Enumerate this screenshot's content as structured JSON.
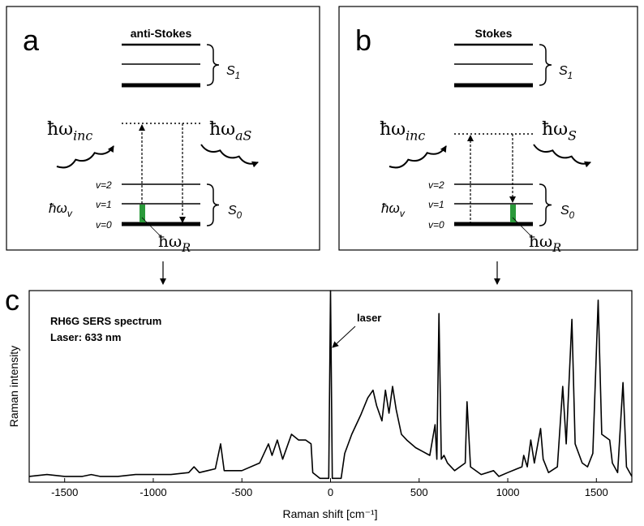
{
  "panels": [
    {
      "label": "a",
      "title": "anti-Stokes",
      "mode": "anti-stokes",
      "upper_state": {
        "symbol": "S",
        "subscript": "1"
      },
      "lower_state": {
        "symbol": "S",
        "subscript": "0"
      },
      "levels": [
        "v=2",
        "v=1",
        "v=0"
      ],
      "vib": {
        "symbol": "ħω",
        "subscript": "v"
      },
      "incident": {
        "symbol": "ħω",
        "subscript": "inc"
      },
      "scattered": {
        "symbol": "ħω",
        "subscript": "aS"
      },
      "raman": {
        "symbol": "ħω",
        "subscript": "R"
      }
    },
    {
      "label": "b",
      "title": "Stokes",
      "mode": "stokes",
      "upper_state": {
        "symbol": "S",
        "subscript": "1"
      },
      "lower_state": {
        "symbol": "S",
        "subscript": "0"
      },
      "levels": [
        "v=2",
        "v=1",
        "v=0"
      ],
      "vib": {
        "symbol": "ħω",
        "subscript": "v"
      },
      "incident": {
        "symbol": "ħω",
        "subscript": "inc"
      },
      "scattered": {
        "symbol": "ħω",
        "subscript": "S"
      },
      "raman": {
        "symbol": "ħω",
        "subscript": "R"
      }
    }
  ],
  "chart_data": {
    "type": "line",
    "panel_label": "c",
    "annotations": [
      "RH6G SERS spectrum",
      "Laser: 633 nm"
    ],
    "laser_label": "laser",
    "x_label": "Raman shift [cm⁻¹]",
    "y_label": "Raman intensity",
    "color": "#000000",
    "xlim": [
      -1700,
      1700
    ],
    "ylim": [
      0,
      100
    ],
    "xticks": [
      -1500,
      -1000,
      -500,
      0,
      500,
      1000,
      1500
    ],
    "x": [
      -1700,
      -1600,
      -1500,
      -1400,
      -1350,
      -1300,
      -1200,
      -1100,
      -1000,
      -900,
      -800,
      -770,
      -740,
      -650,
      -620,
      -600,
      -500,
      -400,
      -350,
      -330,
      -300,
      -270,
      -220,
      -180,
      -140,
      -110,
      -100,
      -60,
      -10,
      0,
      10,
      60,
      80,
      120,
      170,
      210,
      240,
      260,
      290,
      310,
      330,
      350,
      370,
      400,
      430,
      480,
      520,
      560,
      590,
      600,
      612,
      625,
      640,
      660,
      700,
      760,
      770,
      790,
      850,
      920,
      950,
      1000,
      1080,
      1090,
      1110,
      1130,
      1150,
      1185,
      1200,
      1230,
      1280,
      1310,
      1330,
      1362,
      1380,
      1420,
      1450,
      1480,
      1510,
      1530,
      1575,
      1590,
      1620,
      1650,
      1670,
      1700
    ],
    "values": [
      3,
      4,
      3,
      3,
      4,
      3,
      3,
      4,
      4,
      4,
      5,
      8,
      5,
      7,
      20,
      6,
      6,
      10,
      20,
      14,
      22,
      12,
      25,
      22,
      22,
      20,
      5,
      2,
      2,
      100,
      2,
      2,
      15,
      25,
      35,
      44,
      48,
      40,
      32,
      48,
      36,
      50,
      38,
      25,
      22,
      18,
      16,
      14,
      30,
      12,
      88,
      12,
      14,
      10,
      6,
      10,
      42,
      8,
      4,
      6,
      3,
      5,
      8,
      14,
      8,
      22,
      10,
      28,
      12,
      5,
      8,
      50,
      20,
      85,
      20,
      10,
      8,
      15,
      95,
      25,
      22,
      10,
      5,
      52,
      8,
      3
    ]
  }
}
